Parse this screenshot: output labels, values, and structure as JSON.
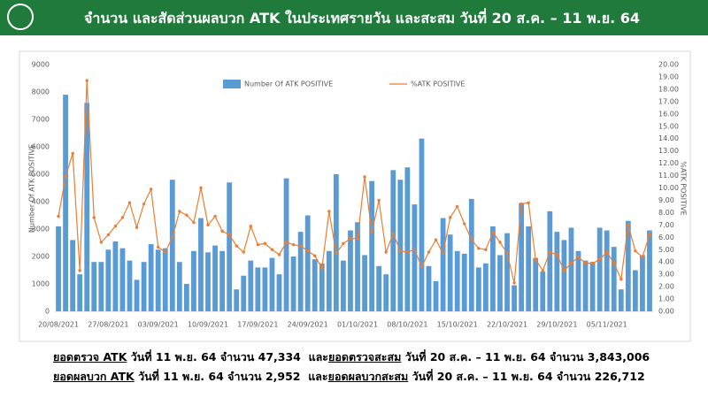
{
  "header": {
    "title": "จำนวน และสัดส่วนผลบวก ATK ในประเทศรายวัน และสะสม วันที่ 20 ส.ค. – 11 พ.ย. 64"
  },
  "chart_data": {
    "type": "bar",
    "y_label": "Number Of ATK POSITIVE",
    "y2_label": "%ATK POSITIVE",
    "categories": [
      "20/08/2021",
      null,
      null,
      null,
      null,
      null,
      null,
      "27/08/2021",
      null,
      null,
      null,
      null,
      null,
      null,
      "03/09/2021",
      null,
      null,
      null,
      null,
      null,
      null,
      "10/09/2021",
      null,
      null,
      null,
      null,
      null,
      null,
      "17/09/2021",
      null,
      null,
      null,
      null,
      null,
      null,
      "24/09/2021",
      null,
      null,
      null,
      null,
      null,
      null,
      "01/10/2021",
      null,
      null,
      null,
      null,
      null,
      null,
      "08/10/2021",
      null,
      null,
      null,
      null,
      null,
      null,
      "15/10/2021",
      null,
      null,
      null,
      null,
      null,
      null,
      "22/10/2021",
      null,
      null,
      null,
      null,
      null,
      null,
      "29/10/2021",
      null,
      null,
      null,
      null,
      null,
      null,
      "05/11/2021",
      null,
      null,
      null,
      null,
      null,
      null
    ],
    "series": [
      {
        "name": "Number Of ATK POSITIVE",
        "type": "bar",
        "color": "#5b9bd5",
        "values": [
          3100,
          7900,
          2600,
          1350,
          7600,
          1800,
          1800,
          2250,
          2550,
          2300,
          1850,
          1150,
          1800,
          2450,
          2250,
          2300,
          4800,
          1800,
          1000,
          2200,
          3400,
          2150,
          2400,
          2200,
          4700,
          800,
          1300,
          1850,
          1600,
          1600,
          1950,
          1350,
          4850,
          2000,
          2900,
          3500,
          1900,
          1750,
          2200,
          5000,
          1850,
          2950,
          3250,
          2050,
          4750,
          1650,
          1350,
          5150,
          4800,
          5250,
          3900,
          6300,
          1650,
          1100,
          3400,
          2800,
          2200,
          2100,
          4100,
          1600,
          1750,
          3100,
          2050,
          2850,
          950,
          3950,
          3100,
          1950,
          1450,
          3650,
          2900,
          2600,
          3050,
          2200,
          1850,
          1800,
          3050,
          2950,
          2350,
          800,
          3300,
          1500,
          2050,
          2952
        ]
      },
      {
        "name": "%ATK POSITIVE",
        "type": "line",
        "axis": "y2",
        "color": "#ed7d31",
        "values": [
          7.7,
          10.9,
          12.8,
          3.3,
          18.7,
          7.6,
          5.6,
          6.2,
          6.9,
          7.6,
          8.8,
          6.8,
          8.7,
          9.9,
          5.2,
          4.8,
          6.0,
          8.1,
          7.8,
          7.2,
          10.0,
          7.0,
          7.7,
          6.5,
          6.2,
          5.3,
          4.8,
          6.9,
          5.4,
          5.5,
          5.0,
          4.6,
          5.6,
          5.4,
          5.3,
          4.9,
          4.5,
          3.5,
          8.1,
          4.7,
          5.5,
          5.9,
          5.9,
          10.9,
          6.4,
          9.0,
          4.8,
          6.3,
          4.9,
          4.8,
          5.0,
          3.6,
          4.8,
          5.8,
          4.7,
          7.6,
          8.5,
          7.1,
          5.8,
          5.1,
          5.0,
          6.4,
          5.6,
          4.7,
          2.3,
          8.7,
          8.8,
          4.2,
          3.3,
          4.8,
          4.6,
          3.3,
          3.9,
          4.4,
          3.9,
          3.9,
          4.2,
          4.8,
          3.9,
          2.6,
          7.0,
          4.9,
          4.4,
          6.2
        ]
      }
    ],
    "ylim": [
      0,
      9000
    ],
    "yticks": [
      0,
      1000,
      2000,
      3000,
      4000,
      5000,
      6000,
      7000,
      8000,
      9000
    ],
    "y2lim": [
      0,
      20
    ],
    "y2ticks": [
      {
        "value": 0,
        "label": "0.00"
      },
      {
        "value": 1,
        "label": "1.00"
      },
      {
        "value": 2,
        "label": "2.00"
      },
      {
        "value": 3,
        "label": "3.00"
      },
      {
        "value": 4,
        "label": "4.00"
      },
      {
        "value": 5,
        "label": "5.00"
      },
      {
        "value": 6,
        "label": "6.00"
      },
      {
        "value": 7,
        "label": "7.00"
      },
      {
        "value": 8,
        "label": "8.00"
      },
      {
        "value": 9,
        "label": "9.00"
      },
      {
        "value": 10,
        "label": "10.00"
      },
      {
        "value": 11,
        "label": "11.00"
      },
      {
        "value": 12,
        "label": "12.00"
      },
      {
        "value": 13,
        "label": "13.00"
      },
      {
        "value": 14,
        "label": "14.00"
      },
      {
        "value": 15,
        "label": "15.00"
      },
      {
        "value": 16,
        "label": "16.00"
      },
      {
        "value": 17,
        "label": "17.00"
      },
      {
        "value": 18,
        "label": "18.00"
      },
      {
        "value": 19,
        "label": "19.00"
      },
      {
        "value": 20,
        "label": "20.00"
      }
    ],
    "grid": false,
    "legend": "top"
  },
  "footer": {
    "lines": [
      {
        "parts": [
          "ยอดตรวจ ATK",
          " วันที่ 11 พ.ย. 64 จำนวน 47,334  และ",
          "ยอดตรวจสะสม",
          " วันที่ 20 ส.ค. – 11 พ.ย. 64 จำนวน 3,843,006"
        ]
      },
      {
        "parts": [
          "ยอดผลบวก ATK",
          " วันที่ 11 พ.ย. 64 จำนวน 2,952  และ",
          "ยอดผลบวกสะสม",
          " วันที่ 20 ส.ค. – 11 พ.ย. 64 จำนวน 226,712"
        ]
      }
    ]
  }
}
